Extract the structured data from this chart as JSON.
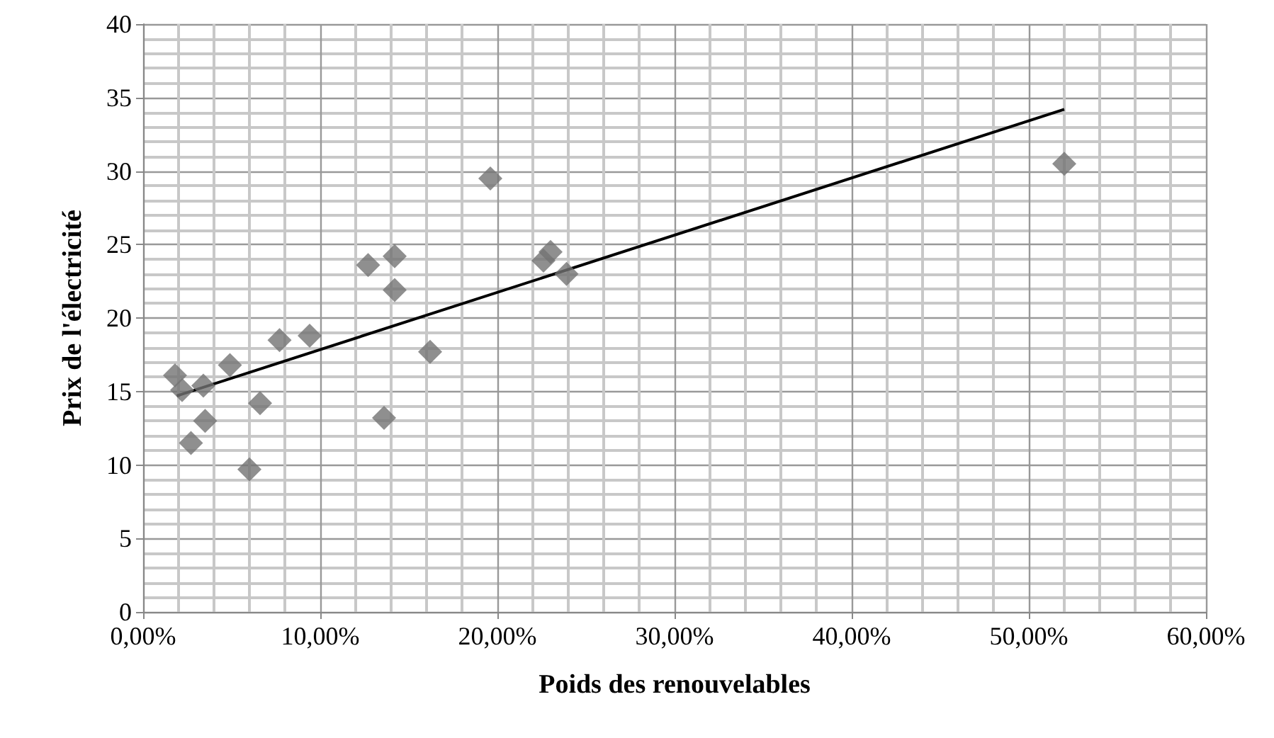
{
  "chart_data": {
    "type": "scatter",
    "xlabel": "Poids des renouvelables",
    "ylabel": "Prix de l'électricité",
    "xlim": [
      0,
      0.6
    ],
    "xticks": [
      {
        "value": 0,
        "label": "0,00%"
      },
      {
        "value": 0.1,
        "label": "10,00%"
      },
      {
        "value": 0.2,
        "label": "20,00%"
      },
      {
        "value": 0.3,
        "label": "30,00%"
      },
      {
        "value": 0.4,
        "label": "40,00%"
      },
      {
        "value": 0.5,
        "label": "50,00%"
      },
      {
        "value": 0.6,
        "label": "60,00%"
      }
    ],
    "ylim": [
      0,
      40
    ],
    "yticks": [
      0,
      5,
      10,
      15,
      20,
      25,
      30,
      35,
      40
    ],
    "grid": true,
    "series": [
      {
        "marker": "diamond",
        "color": "#737373",
        "x": [
          0.018,
          0.022,
          0.034,
          0.027,
          0.035,
          0.049,
          0.06,
          0.066,
          0.077,
          0.094,
          0.127,
          0.142,
          0.142,
          0.136,
          0.162,
          0.196,
          0.226,
          0.23,
          0.239,
          0.52
        ],
        "values": [
          16.1,
          15.1,
          15.4,
          11.5,
          13.0,
          16.8,
          9.7,
          14.2,
          18.5,
          18.8,
          23.6,
          24.2,
          21.9,
          13.2,
          17.7,
          29.5,
          23.9,
          24.5,
          23.0,
          30.5
        ]
      },
      {
        "type": "line",
        "marker": "none",
        "color": "#000000",
        "x": [
          0.019,
          0.52
        ],
        "values": [
          14.7,
          34.2
        ]
      }
    ]
  }
}
